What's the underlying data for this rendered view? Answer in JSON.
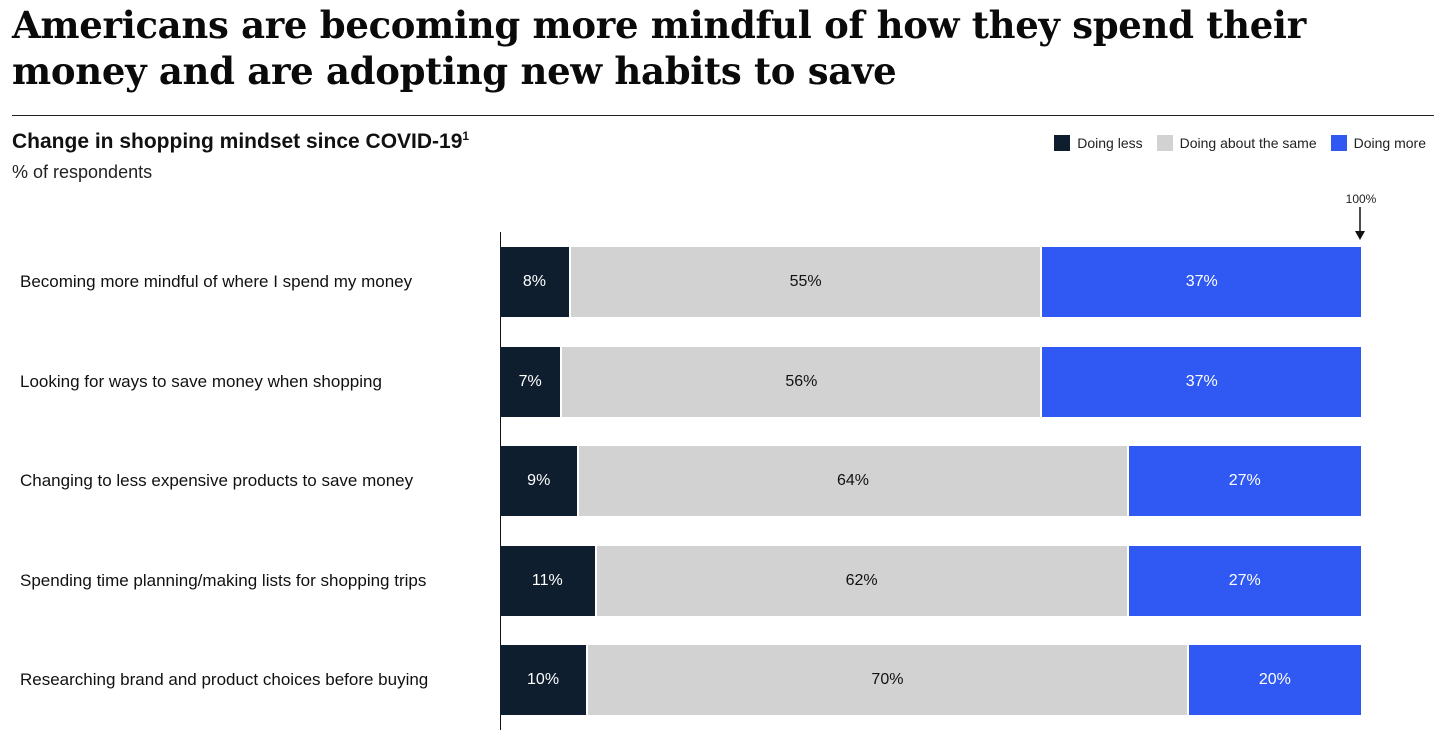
{
  "title": "Americans are becoming more mindful of how they spend their money and are adopting new habits to save",
  "chart_data": {
    "type": "bar",
    "orientation": "horizontal",
    "stacked": true,
    "subtitle": "Change in shopping mindset since COVID-19",
    "footnote_marker": "1",
    "unit_label": "% of respondents",
    "reference_label": "100%",
    "xlim": [
      0,
      100
    ],
    "legend_position": "top-right",
    "categories": [
      "Becoming more mindful of where I spend my money",
      "Looking for ways to save money when shopping",
      "Changing to less expensive products to save money",
      "Spending time planning/making lists for shopping trips",
      "Researching brand and product choices before buying"
    ],
    "series": [
      {
        "name": "Doing less",
        "color": "#0f1e2f",
        "values": [
          8,
          7,
          9,
          11,
          10
        ],
        "labels": [
          "8%",
          "7%",
          "9%",
          "11%",
          "10%"
        ]
      },
      {
        "name": "Doing about the same",
        "color": "#d2d2d2",
        "values": [
          55,
          56,
          64,
          62,
          70
        ],
        "labels": [
          "55%",
          "56%",
          "64%",
          "62%",
          "70%"
        ]
      },
      {
        "name": "Doing more",
        "color": "#2f59f2",
        "values": [
          37,
          37,
          27,
          27,
          20
        ],
        "labels": [
          "37%",
          "37%",
          "27%",
          "27%",
          "20%"
        ]
      }
    ]
  }
}
